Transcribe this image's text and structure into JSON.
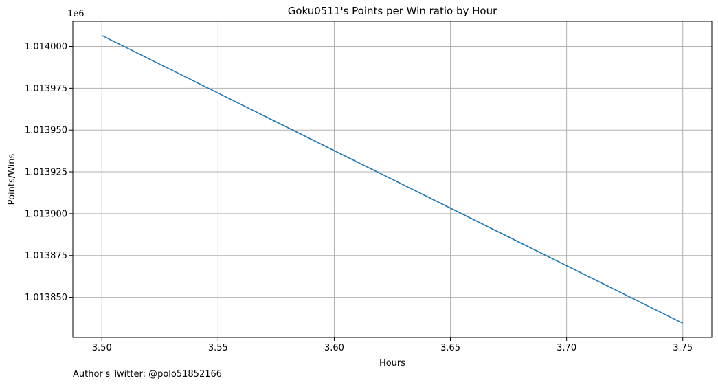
{
  "chart_data": {
    "type": "line",
    "title": "Goku0511's Points per Win ratio by Hour",
    "xlabel": "Hours",
    "ylabel": "Points/Wins",
    "y_offset_label": "1e6",
    "xlim": [
      3.4875,
      3.7625
    ],
    "ylim": [
      1013826.0,
      1014015.0
    ],
    "x_ticks": [
      3.5,
      3.55,
      3.6,
      3.65,
      3.7,
      3.75
    ],
    "x_tick_labels": [
      "3.50",
      "3.55",
      "3.60",
      "3.65",
      "3.70",
      "3.75"
    ],
    "y_ticks": [
      1014000,
      1013975,
      1013950,
      1013925,
      1013900,
      1013875,
      1013850
    ],
    "y_tick_labels": [
      "1.014000",
      "1.013975",
      "1.013950",
      "1.013925",
      "1.013900",
      "1.013875",
      "1.013850"
    ],
    "grid": true,
    "series": [
      {
        "x": [
          3.5,
          3.75
        ],
        "y": [
          1014006.5,
          1013834.5
        ],
        "color": "#1f77b4"
      }
    ]
  },
  "footer": {
    "text": "Author's Twitter: @polo51852166"
  }
}
